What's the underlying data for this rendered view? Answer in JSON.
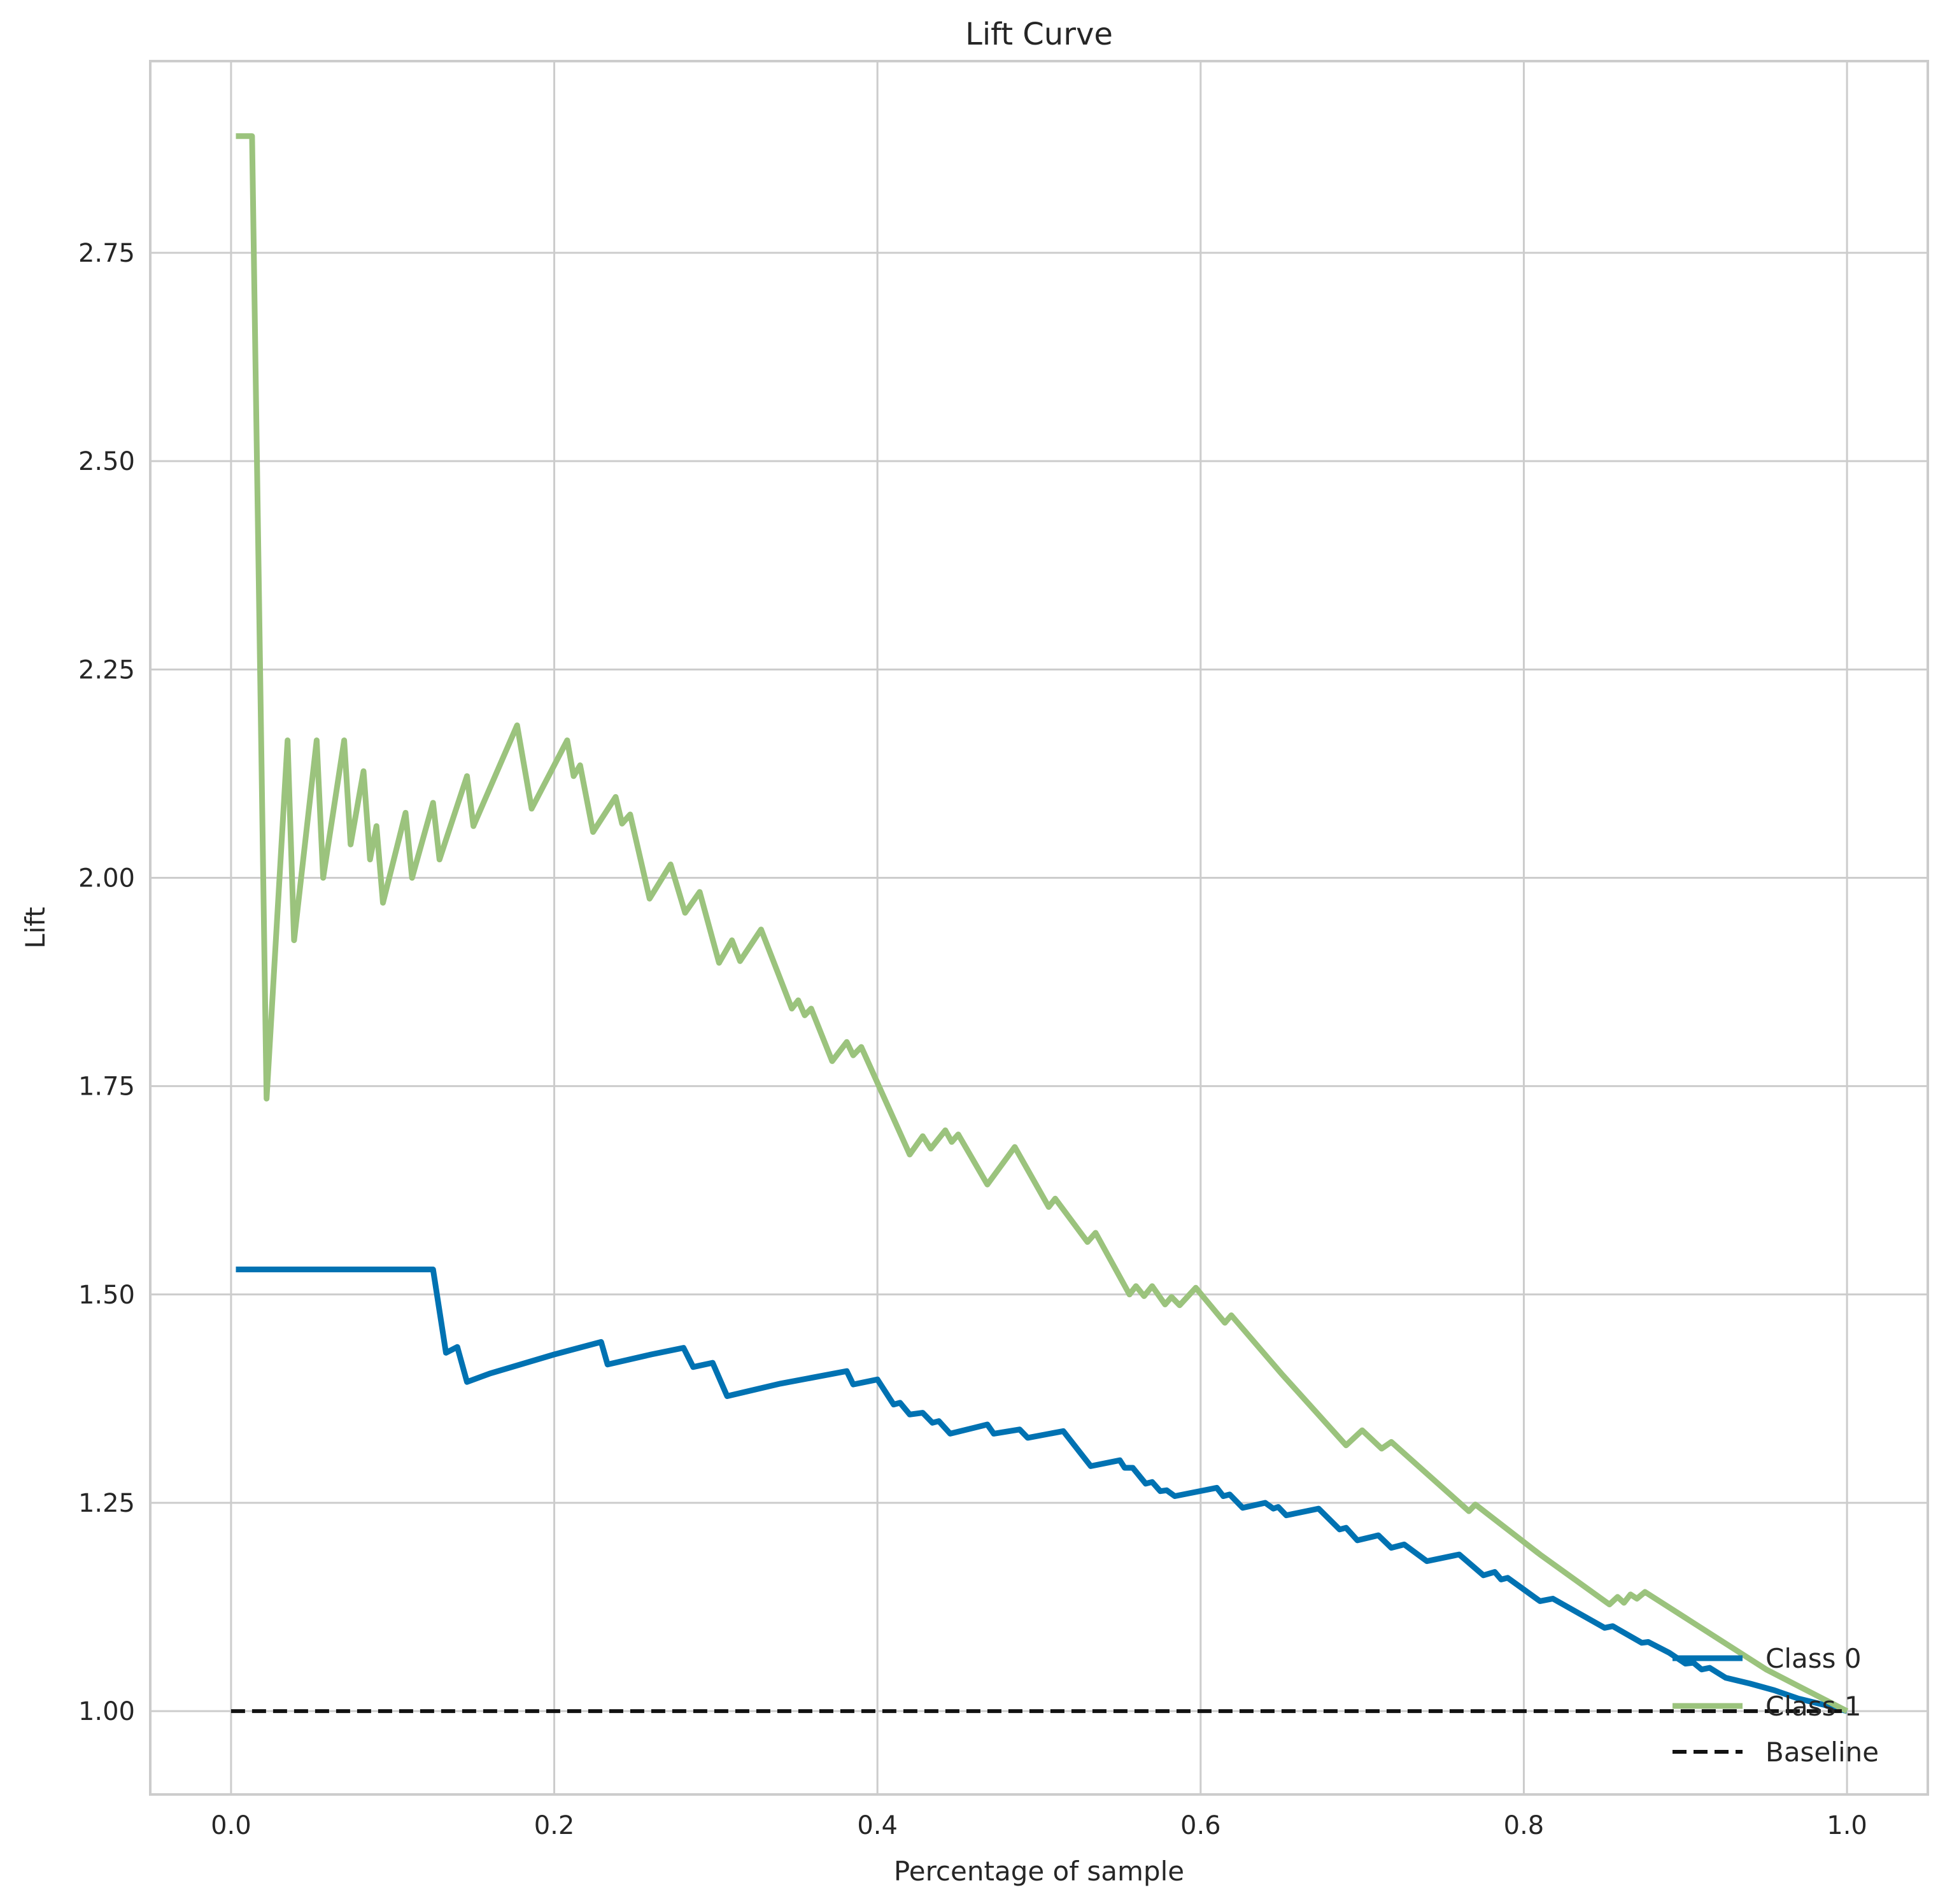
{
  "chart_data": {
    "type": "line",
    "title": "Lift Curve",
    "xlabel": "Percentage of sample",
    "ylabel": "Lift",
    "xlim": [
      -0.05,
      1.05
    ],
    "ylim": [
      0.9,
      2.98
    ],
    "grid": true,
    "legend_position": "lower-right",
    "x_ticks": [
      "0.0",
      "0.2",
      "0.4",
      "0.6",
      "0.8",
      "1.0"
    ],
    "y_ticks": [
      "1.00",
      "1.25",
      "1.50",
      "1.75",
      "2.00",
      "2.25",
      "2.50",
      "2.75"
    ],
    "series": [
      {
        "name": "Class 0",
        "color": "#0072b2",
        "style": "solid",
        "points": [
          [
            0.003,
            1.53
          ],
          [
            0.125,
            1.53
          ],
          [
            0.133,
            1.43
          ],
          [
            0.14,
            1.437
          ],
          [
            0.146,
            1.395
          ],
          [
            0.16,
            1.405
          ],
          [
            0.2,
            1.428
          ],
          [
            0.229,
            1.443
          ],
          [
            0.233,
            1.416
          ],
          [
            0.26,
            1.428
          ],
          [
            0.28,
            1.436
          ],
          [
            0.286,
            1.413
          ],
          [
            0.298,
            1.418
          ],
          [
            0.307,
            1.378
          ],
          [
            0.34,
            1.393
          ],
          [
            0.381,
            1.408
          ],
          [
            0.385,
            1.392
          ],
          [
            0.4,
            1.398
          ],
          [
            0.41,
            1.368
          ],
          [
            0.414,
            1.37
          ],
          [
            0.42,
            1.356
          ],
          [
            0.428,
            1.358
          ],
          [
            0.434,
            1.346
          ],
          [
            0.438,
            1.348
          ],
          [
            0.445,
            1.333
          ],
          [
            0.468,
            1.344
          ],
          [
            0.472,
            1.333
          ],
          [
            0.488,
            1.338
          ],
          [
            0.493,
            1.328
          ],
          [
            0.515,
            1.336
          ],
          [
            0.532,
            1.294
          ],
          [
            0.55,
            1.301
          ],
          [
            0.553,
            1.292
          ],
          [
            0.558,
            1.292
          ],
          [
            0.566,
            1.273
          ],
          [
            0.57,
            1.275
          ],
          [
            0.575,
            1.264
          ],
          [
            0.579,
            1.265
          ],
          [
            0.584,
            1.258
          ],
          [
            0.61,
            1.268
          ],
          [
            0.614,
            1.258
          ],
          [
            0.618,
            1.26
          ],
          [
            0.626,
            1.244
          ],
          [
            0.64,
            1.25
          ],
          [
            0.645,
            1.243
          ],
          [
            0.648,
            1.245
          ],
          [
            0.653,
            1.235
          ],
          [
            0.673,
            1.243
          ],
          [
            0.686,
            1.218
          ],
          [
            0.69,
            1.22
          ],
          [
            0.697,
            1.205
          ],
          [
            0.71,
            1.211
          ],
          [
            0.718,
            1.196
          ],
          [
            0.726,
            1.2
          ],
          [
            0.74,
            1.18
          ],
          [
            0.76,
            1.188
          ],
          [
            0.775,
            1.163
          ],
          [
            0.782,
            1.167
          ],
          [
            0.786,
            1.158
          ],
          [
            0.79,
            1.16
          ],
          [
            0.81,
            1.132
          ],
          [
            0.818,
            1.135
          ],
          [
            0.85,
            1.1
          ],
          [
            0.855,
            1.102
          ],
          [
            0.873,
            1.082
          ],
          [
            0.877,
            1.083
          ],
          [
            0.89,
            1.07
          ],
          [
            0.9,
            1.057
          ],
          [
            0.905,
            1.058
          ],
          [
            0.91,
            1.05
          ],
          [
            0.915,
            1.052
          ],
          [
            0.925,
            1.04
          ],
          [
            0.94,
            1.033
          ],
          [
            0.955,
            1.025
          ],
          [
            0.97,
            1.015
          ],
          [
            0.985,
            1.008
          ],
          [
            1.0,
            1.0
          ]
        ]
      },
      {
        "name": "Class 1",
        "color": "#9bc37d",
        "style": "solid",
        "points": [
          [
            0.003,
            2.89
          ],
          [
            0.013,
            2.89
          ],
          [
            0.022,
            1.735
          ],
          [
            0.035,
            2.165
          ],
          [
            0.039,
            1.925
          ],
          [
            0.053,
            2.165
          ],
          [
            0.057,
            2.0
          ],
          [
            0.07,
            2.165
          ],
          [
            0.074,
            2.04
          ],
          [
            0.082,
            2.128
          ],
          [
            0.086,
            2.022
          ],
          [
            0.09,
            2.062
          ],
          [
            0.094,
            1.97
          ],
          [
            0.108,
            2.078
          ],
          [
            0.112,
            2.0
          ],
          [
            0.125,
            2.09
          ],
          [
            0.129,
            2.022
          ],
          [
            0.146,
            2.122
          ],
          [
            0.15,
            2.062
          ],
          [
            0.177,
            2.183
          ],
          [
            0.186,
            2.083
          ],
          [
            0.208,
            2.165
          ],
          [
            0.212,
            2.122
          ],
          [
            0.216,
            2.135
          ],
          [
            0.224,
            2.055
          ],
          [
            0.238,
            2.097
          ],
          [
            0.242,
            2.065
          ],
          [
            0.247,
            2.076
          ],
          [
            0.259,
            1.975
          ],
          [
            0.272,
            2.016
          ],
          [
            0.281,
            1.958
          ],
          [
            0.29,
            1.983
          ],
          [
            0.302,
            1.898
          ],
          [
            0.31,
            1.925
          ],
          [
            0.315,
            1.9
          ],
          [
            0.328,
            1.938
          ],
          [
            0.347,
            1.843
          ],
          [
            0.351,
            1.853
          ],
          [
            0.355,
            1.835
          ],
          [
            0.359,
            1.843
          ],
          [
            0.372,
            1.78
          ],
          [
            0.381,
            1.803
          ],
          [
            0.385,
            1.787
          ],
          [
            0.39,
            1.797
          ],
          [
            0.42,
            1.668
          ],
          [
            0.428,
            1.69
          ],
          [
            0.433,
            1.675
          ],
          [
            0.442,
            1.697
          ],
          [
            0.446,
            1.683
          ],
          [
            0.45,
            1.692
          ],
          [
            0.468,
            1.632
          ],
          [
            0.485,
            1.677
          ],
          [
            0.506,
            1.605
          ],
          [
            0.51,
            1.615
          ],
          [
            0.53,
            1.563
          ],
          [
            0.535,
            1.574
          ],
          [
            0.556,
            1.5
          ],
          [
            0.56,
            1.51
          ],
          [
            0.565,
            1.498
          ],
          [
            0.57,
            1.51
          ],
          [
            0.578,
            1.488
          ],
          [
            0.582,
            1.497
          ],
          [
            0.587,
            1.487
          ],
          [
            0.597,
            1.508
          ],
          [
            0.615,
            1.466
          ],
          [
            0.619,
            1.475
          ],
          [
            0.65,
            1.405
          ],
          [
            0.69,
            1.319
          ],
          [
            0.7,
            1.337
          ],
          [
            0.712,
            1.315
          ],
          [
            0.718,
            1.323
          ],
          [
            0.766,
            1.24
          ],
          [
            0.77,
            1.248
          ],
          [
            0.81,
            1.188
          ],
          [
            0.853,
            1.128
          ],
          [
            0.858,
            1.137
          ],
          [
            0.862,
            1.13
          ],
          [
            0.866,
            1.14
          ],
          [
            0.87,
            1.135
          ],
          [
            0.875,
            1.143
          ],
          [
            0.9,
            1.112
          ],
          [
            0.95,
            1.05
          ],
          [
            1.0,
            1.0
          ]
        ]
      },
      {
        "name": "Baseline",
        "color": "#111111",
        "style": "dashed",
        "points": [
          [
            0.0,
            1.0
          ],
          [
            1.0,
            1.0
          ]
        ]
      }
    ]
  }
}
